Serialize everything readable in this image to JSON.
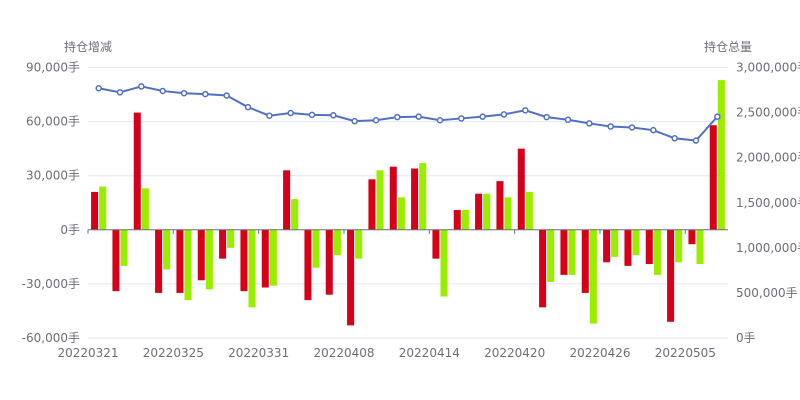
{
  "chart_data": {
    "type": "bar",
    "x": [
      "20220321",
      "20220322",
      "20220323",
      "20220324",
      "20220325",
      "20220328",
      "20220329",
      "20220330",
      "20220331",
      "20220401",
      "20220406",
      "20220407",
      "20220408",
      "20220411",
      "20220412",
      "20220413",
      "20220414",
      "20220415",
      "20220418",
      "20220419",
      "20220420",
      "20220421",
      "20220422",
      "20220425",
      "20220426",
      "20220427",
      "20220428",
      "20220429",
      "20220505",
      "20220506"
    ],
    "x_tick_labels": [
      "20220321",
      "20220325",
      "20220331",
      "20220408",
      "20220414",
      "20220420",
      "20220426",
      "20220505"
    ],
    "y_left": {
      "name": "持仓增减",
      "ylim": [
        -60000,
        90000
      ],
      "ticks": [
        -60000,
        -30000,
        0,
        30000,
        60000,
        90000
      ],
      "tick_labels": [
        "-60,000手",
        "-30,000手",
        "0手",
        "30,000手",
        "60,000手",
        "90,000手"
      ]
    },
    "y_right": {
      "name": "持仓总量",
      "ylim": [
        0,
        3000000
      ],
      "ticks": [
        0,
        500000,
        1000000,
        1500000,
        2000000,
        2500000,
        3000000
      ],
      "tick_labels": [
        "0手",
        "500,000手",
        "1,000,000手",
        "1,500,000手",
        "2,000,000手",
        "2,500,000手",
        "3,000,000手"
      ]
    },
    "series": [
      {
        "kind": "bar",
        "axis": "left",
        "color": "#d7001b",
        "values": [
          21000,
          -34000,
          65000,
          -35000,
          -35000,
          -28000,
          -16000,
          -34000,
          -32000,
          33000,
          -39000,
          -36000,
          -53000,
          28000,
          35000,
          34000,
          -16000,
          11000,
          20000,
          27000,
          45000,
          -43000,
          -25000,
          -35000,
          -18000,
          -20000,
          -19000,
          -51000,
          -8000,
          58000
        ]
      },
      {
        "kind": "bar",
        "axis": "left",
        "color": "#99ee00",
        "values": [
          24000,
          -20000,
          23000,
          -22000,
          -39000,
          -33000,
          -10000,
          -43000,
          -31000,
          17000,
          -21000,
          -14000,
          -16000,
          33000,
          18000,
          37000,
          -37000,
          11000,
          20000,
          18000,
          21000,
          -29000,
          -25000,
          -52000,
          -15000,
          -14000,
          -25000,
          -18000,
          -19000,
          83000
        ]
      },
      {
        "kind": "line",
        "axis": "right",
        "color": "#5470c6",
        "values": [
          2770000,
          2725000,
          2790000,
          2740000,
          2715000,
          2705000,
          2690000,
          2560000,
          2465000,
          2495000,
          2475000,
          2470000,
          2405000,
          2415000,
          2450000,
          2455000,
          2415000,
          2435000,
          2455000,
          2480000,
          2525000,
          2450000,
          2420000,
          2380000,
          2345000,
          2335000,
          2305000,
          2215000,
          2190000,
          2455000
        ]
      }
    ]
  }
}
